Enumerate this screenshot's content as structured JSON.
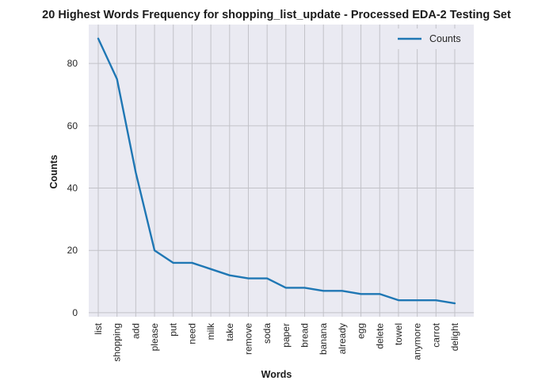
{
  "chart_data": {
    "type": "line",
    "title": "20 Highest Words Frequency for shopping_list_update - Processed EDA-2 Testing Set",
    "xlabel": "Words",
    "ylabel": "Counts",
    "categories": [
      "list",
      "shopping",
      "add",
      "please",
      "put",
      "need",
      "milk",
      "take",
      "remove",
      "soda",
      "paper",
      "bread",
      "banana",
      "already",
      "egg",
      "delete",
      "towel",
      "anymore",
      "carrot",
      "delight"
    ],
    "series": [
      {
        "name": "Counts",
        "color": "#1f77b4",
        "values": [
          88,
          75,
          45,
          20,
          16,
          16,
          14,
          12,
          11,
          11,
          8,
          8,
          7,
          7,
          6,
          6,
          4,
          4,
          4,
          3
        ]
      }
    ],
    "ylim": [
      -1.3,
      92.5
    ],
    "yticks": [
      0,
      20,
      40,
      60,
      80
    ],
    "grid": true,
    "legend": "top-right",
    "background_color": "#eaeaf2",
    "grid_color": "#c2c2c8"
  }
}
